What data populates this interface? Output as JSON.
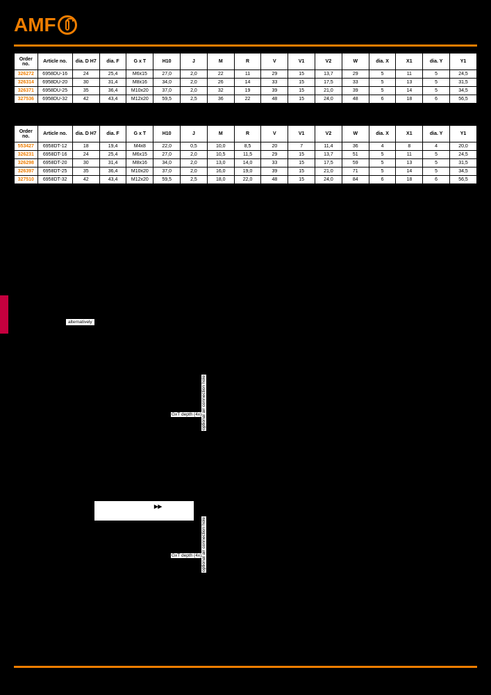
{
  "logo": {
    "text": "AMF"
  },
  "label_alternatively": "alternatively",
  "label_gxt": "GxT depth (4x)",
  "label_air": "optional air connection hole",
  "diagram_arrow": "▸▸",
  "table1": {
    "headers": [
      "Order no.",
      "Article no.",
      "dia. D H7",
      "dia. F",
      "G x T",
      "H10",
      "J",
      "M",
      "R",
      "V",
      "V1",
      "V2",
      "W",
      "dia. X",
      "X1",
      "dia. Y",
      "Y1"
    ],
    "rows": [
      [
        "326272",
        "6958DU-16",
        "24",
        "25,4",
        "M6x15",
        "27,0",
        "2,0",
        "22",
        "11",
        "29",
        "15",
        "13,7",
        "29",
        "5",
        "11",
        "5",
        "24,5"
      ],
      [
        "326314",
        "6958DU-20",
        "30",
        "31,4",
        "M8x16",
        "34,0",
        "2,0",
        "26",
        "14",
        "33",
        "15",
        "17,5",
        "33",
        "5",
        "13",
        "5",
        "31,5"
      ],
      [
        "326371",
        "6958DU-25",
        "35",
        "36,4",
        "M10x20",
        "37,0",
        "2,0",
        "32",
        "19",
        "39",
        "15",
        "21,0",
        "39",
        "5",
        "14",
        "5",
        "34,5"
      ],
      [
        "327536",
        "6958DU-32",
        "42",
        "43,4",
        "M12x20",
        "59,5",
        "2,5",
        "36",
        "22",
        "48",
        "15",
        "24,0",
        "48",
        "6",
        "18",
        "6",
        "56,5"
      ]
    ]
  },
  "table2": {
    "headers": [
      "Order no.",
      "Article no.",
      "dia. D H7",
      "dia. F",
      "G x T",
      "H10",
      "J",
      "M",
      "R",
      "V",
      "V1",
      "V2",
      "W",
      "dia. X",
      "X1",
      "dia. Y",
      "Y1"
    ],
    "rows": [
      [
        "553427",
        "6958DT-12",
        "18",
        "19,4",
        "M4x8",
        "22,0",
        "0,5",
        "10,0",
        "8,5",
        "20",
        "7",
        "11,4",
        "36",
        "4",
        "8",
        "4",
        "20,0"
      ],
      [
        "326231",
        "6958DT-16",
        "24",
        "25,4",
        "M6x15",
        "27,0",
        "2,0",
        "10,5",
        "11,5",
        "29",
        "15",
        "13,7",
        "51",
        "5",
        "11",
        "5",
        "24,5"
      ],
      [
        "326298",
        "6958DT-20",
        "30",
        "31,4",
        "M8x16",
        "34,0",
        "2,0",
        "13,0",
        "14,0",
        "33",
        "15",
        "17,5",
        "59",
        "5",
        "13",
        "5",
        "31,5"
      ],
      [
        "326397",
        "6958DT-25",
        "35",
        "36,4",
        "M10x20",
        "37,0",
        "2,0",
        "16,0",
        "19,0",
        "39",
        "15",
        "21,0",
        "71",
        "5",
        "14",
        "5",
        "34,5"
      ],
      [
        "327510",
        "6958DT-32",
        "42",
        "43,4",
        "M12x20",
        "59,5",
        "2,5",
        "18,0",
        "22,0",
        "48",
        "15",
        "24,0",
        "84",
        "6",
        "18",
        "6",
        "56,5"
      ]
    ]
  },
  "colors": {
    "accent": "#ef7d00",
    "sidebar": "#c5003e",
    "background": "#000000",
    "table_bg": "#ffffff"
  }
}
